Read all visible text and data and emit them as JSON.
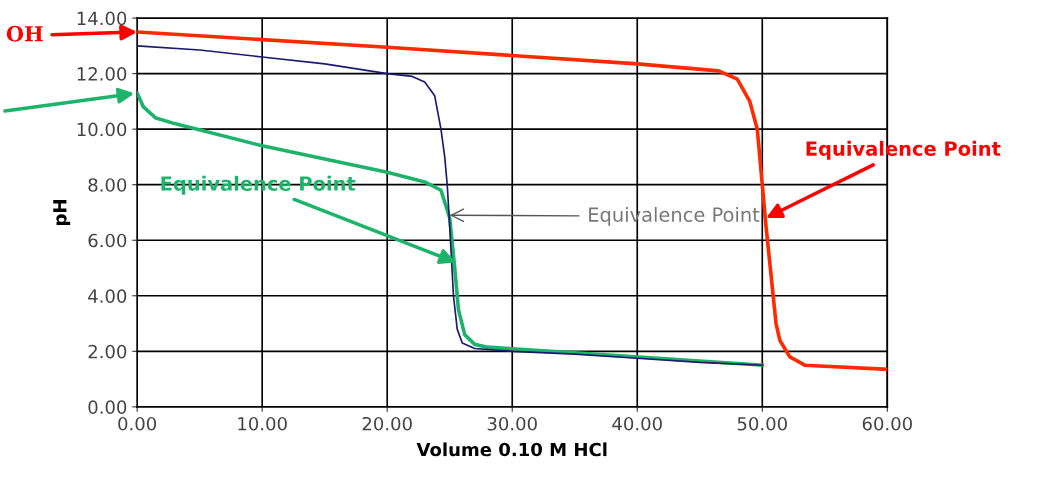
{
  "chart_data": {
    "type": "line",
    "xlabel": "Volume 0.10 M HCl",
    "ylabel": "pH",
    "xlim": [
      0,
      60
    ],
    "ylim": [
      0,
      14
    ],
    "xticks": [
      {
        "value": 0,
        "label": "0.00"
      },
      {
        "value": 10,
        "label": "10.00"
      },
      {
        "value": 20,
        "label": "20.00"
      },
      {
        "value": 30,
        "label": "30.00"
      },
      {
        "value": 40,
        "label": "40.00"
      },
      {
        "value": 50,
        "label": "50.00"
      },
      {
        "value": 60,
        "label": "60.00"
      }
    ],
    "yticks": [
      {
        "value": 0,
        "label": "0.00"
      },
      {
        "value": 2,
        "label": "2.00"
      },
      {
        "value": 4,
        "label": "4.00"
      },
      {
        "value": 6,
        "label": "6.00"
      },
      {
        "value": 8,
        "label": "8.00"
      },
      {
        "value": 10,
        "label": "10.00"
      },
      {
        "value": 12,
        "label": "12.00"
      },
      {
        "value": 14,
        "label": "14.00"
      }
    ],
    "grid": true,
    "legend": false,
    "marker": "none",
    "line_style": "solid",
    "series": [
      {
        "color": "#ff2a00",
        "x": [
          0,
          20,
          40,
          46.5,
          48,
          49,
          49.6,
          50.3,
          51.1,
          51.4,
          52.2,
          53.4,
          60
        ],
        "values": [
          13.5,
          12.95,
          12.35,
          12.1,
          11.8,
          11.0,
          10.0,
          6.5,
          3.0,
          2.4,
          1.8,
          1.5,
          1.35
        ]
      },
      {
        "color": "#1a1a6e",
        "x": [
          0,
          5,
          10,
          15,
          20,
          22,
          23,
          23.8,
          24.3,
          24.6,
          24.8,
          25,
          25.3,
          25.6,
          26,
          27,
          30,
          35,
          40,
          45,
          50
        ],
        "values": [
          13.0,
          12.85,
          12.6,
          12.35,
          12.0,
          11.9,
          11.7,
          11.2,
          10.0,
          9.0,
          8.0,
          6.5,
          4.0,
          2.8,
          2.3,
          2.1,
          2.0,
          1.9,
          1.75,
          1.6,
          1.5
        ]
      },
      {
        "color": "#1eb36a",
        "x": [
          0,
          0.5,
          1.5,
          3,
          10,
          20,
          23,
          24.3,
          25,
          25.4,
          25.7,
          26.2,
          27,
          28,
          35,
          45,
          50
        ],
        "values": [
          11.3,
          10.8,
          10.4,
          10.2,
          9.4,
          8.45,
          8.1,
          7.8,
          6.8,
          5.0,
          3.5,
          2.6,
          2.25,
          2.15,
          1.95,
          1.65,
          1.5
        ]
      }
    ],
    "annotations": [
      {
        "text": "OH",
        "x": 0,
        "y": 13.5
      },
      {
        "text": "Equivalence Point",
        "x": 25.5,
        "y": 5.2
      },
      {
        "text": "Equivalence Point",
        "x": 25,
        "y": 6.9
      },
      {
        "text": "Equivalence Point",
        "x": 50.3,
        "y": 6.8
      }
    ]
  }
}
